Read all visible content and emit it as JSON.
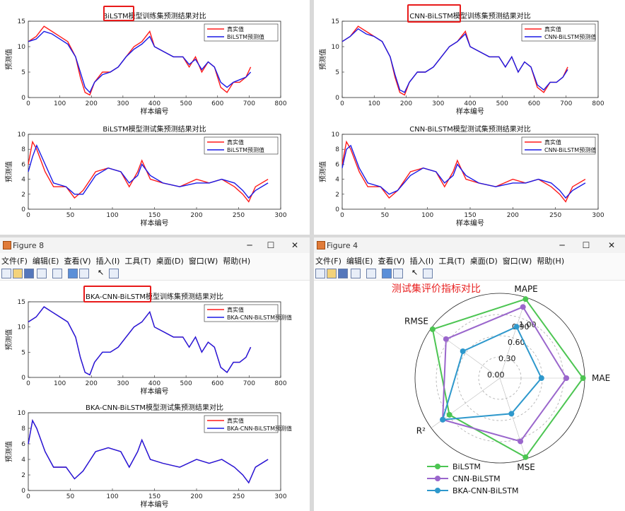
{
  "windows": {
    "bilstm": {
      "main_title": "BiLSTM模型训练集预测结果对比",
      "test_title": "BiLSTM模型测试集预测结果对比",
      "legend": [
        "真实值",
        "BiLSTM预测值"
      ]
    },
    "cnn": {
      "main_title": "CNN-BiLSTM模型训练集预测结果对比",
      "test_title": "CNN-BiLSTM模型测试集预测结果对比",
      "legend": [
        "真实值",
        "CNN-BiLSTM预测值"
      ]
    },
    "bka": {
      "window_title": "Figure 8",
      "main_title": "BKA-CNN-BiLSTM模型训练集预测结果对比",
      "test_title": "BKA-CNN-BiLSTM模型测试集预测结果对比",
      "legend": [
        "真实值",
        "BKA-CNN-BiLSTM预测值"
      ]
    },
    "radar": {
      "window_title": "Figure 4"
    }
  },
  "menu8": [
    "文件(F)",
    "编辑(E)",
    "查看(V)",
    "插入(I)",
    "工具(T)",
    "桌面(D)",
    "窗口(W)",
    "帮助(H)"
  ],
  "menu4": [
    "文件(F)",
    "编辑(E)",
    "查看(V)",
    "插入(I)",
    "工具(T)",
    "桌面(D)",
    "窗口(W)",
    "帮助(H)"
  ],
  "axis_labels": {
    "xlabel": "样本编号",
    "ylabel": "预测值"
  },
  "chart_data": [
    {
      "type": "line",
      "title": "BiLSTM模型训练集预测结果对比",
      "xlabel": "样本编号",
      "ylabel": "预测值",
      "xlim": [
        0,
        800
      ],
      "ylim": [
        0,
        15
      ],
      "xticks": [
        0,
        100,
        200,
        300,
        400,
        500,
        600,
        700,
        800
      ],
      "yticks": [
        0,
        5,
        10,
        15
      ],
      "legend_position": "top-right",
      "x": [
        0,
        25,
        50,
        75,
        100,
        125,
        150,
        165,
        180,
        195,
        210,
        235,
        260,
        285,
        310,
        335,
        360,
        385,
        400,
        430,
        460,
        490,
        510,
        530,
        550,
        570,
        590,
        610,
        630,
        650,
        670,
        690,
        705
      ],
      "series": [
        {
          "name": "真实值",
          "values": [
            11,
            12,
            14,
            13,
            12,
            11,
            8,
            4,
            1,
            0.5,
            3,
            5,
            5,
            6,
            8,
            10,
            11,
            13,
            10,
            9,
            8,
            8,
            6,
            8,
            5,
            7,
            6,
            2,
            1,
            3,
            3,
            4,
            6
          ]
        },
        {
          "name": "BiLSTM预测值",
          "values": [
            11,
            11.5,
            13,
            12.5,
            11.5,
            10.5,
            8,
            5,
            2,
            1,
            3,
            4.5,
            5,
            6,
            8,
            9.5,
            10.5,
            12,
            10,
            9,
            8,
            8,
            6.5,
            7.5,
            5.5,
            7,
            6,
            3,
            2,
            3,
            3.5,
            4,
            5
          ]
        }
      ]
    },
    {
      "type": "line",
      "title": "BiLSTM模型测试集预测结果对比",
      "xlabel": "样本编号",
      "ylabel": "预测值",
      "xlim": [
        0,
        300
      ],
      "ylim": [
        0,
        10
      ],
      "xticks": [
        0,
        50,
        100,
        150,
        200,
        250,
        300
      ],
      "yticks": [
        0,
        2,
        4,
        6,
        8,
        10
      ],
      "legend_position": "top-right",
      "x": [
        0,
        5,
        10,
        20,
        30,
        45,
        55,
        65,
        80,
        95,
        110,
        120,
        130,
        135,
        145,
        160,
        180,
        200,
        215,
        230,
        245,
        255,
        262,
        270,
        285
      ],
      "series": [
        {
          "name": "真实值",
          "values": [
            6,
            9,
            8,
            5,
            3,
            3,
            1.5,
            2.5,
            5,
            5.5,
            5,
            3,
            5,
            6.5,
            4,
            3.5,
            3,
            4,
            3.5,
            4,
            3,
            2,
            1,
            3,
            4
          ]
        },
        {
          "name": "BiLSTM预测值",
          "values": [
            5,
            7,
            8.5,
            6,
            3.5,
            3,
            2,
            2,
            4.5,
            5.5,
            5,
            3.5,
            4.5,
            6,
            4.5,
            3.5,
            3,
            3.5,
            3.5,
            4,
            3.5,
            2.5,
            1.5,
            2.5,
            3.5
          ]
        }
      ]
    },
    {
      "type": "line",
      "title": "CNN-BiLSTM模型训练集预测结果对比",
      "xlabel": "样本编号",
      "ylabel": "预测值",
      "xlim": [
        0,
        800
      ],
      "ylim": [
        0,
        15
      ],
      "xticks": [
        0,
        100,
        200,
        300,
        400,
        500,
        600,
        700,
        800
      ],
      "yticks": [
        0,
        5,
        10,
        15
      ],
      "legend_position": "top-right",
      "x": [
        0,
        25,
        50,
        75,
        100,
        125,
        150,
        165,
        180,
        195,
        210,
        235,
        260,
        285,
        310,
        335,
        360,
        385,
        400,
        430,
        460,
        490,
        510,
        530,
        550,
        570,
        590,
        610,
        630,
        650,
        670,
        690,
        705
      ],
      "series": [
        {
          "name": "真实值",
          "values": [
            11,
            12,
            14,
            13,
            12,
            11,
            8,
            4,
            1,
            0.5,
            3,
            5,
            5,
            6,
            8,
            10,
            11,
            13,
            10,
            9,
            8,
            8,
            6,
            8,
            5,
            7,
            6,
            2,
            1,
            3,
            3,
            4,
            6
          ]
        },
        {
          "name": "CNN-BiLSTM预测值",
          "values": [
            11,
            12,
            13.5,
            12.5,
            12,
            11,
            8,
            4.5,
            1.5,
            1,
            3,
            5,
            5,
            6,
            8,
            10,
            11,
            12.5,
            10,
            9,
            8,
            8,
            6,
            8,
            5,
            7,
            6,
            2.5,
            1.5,
            3,
            3,
            4,
            5.5
          ]
        }
      ]
    },
    {
      "type": "line",
      "title": "CNN-BiLSTM模型测试集预测结果对比",
      "xlabel": "样本编号",
      "ylabel": "预测值",
      "xlim": [
        0,
        300
      ],
      "ylim": [
        0,
        10
      ],
      "xticks": [
        0,
        50,
        100,
        150,
        200,
        250,
        300
      ],
      "yticks": [
        0,
        2,
        4,
        6,
        8,
        10
      ],
      "legend_position": "top-right",
      "x": [
        0,
        5,
        10,
        20,
        30,
        45,
        55,
        65,
        80,
        95,
        110,
        120,
        130,
        135,
        145,
        160,
        180,
        200,
        215,
        230,
        245,
        255,
        262,
        270,
        285
      ],
      "series": [
        {
          "name": "真实值",
          "values": [
            6,
            9,
            8,
            5,
            3,
            3,
            1.5,
            2.5,
            5,
            5.5,
            5,
            3,
            5,
            6.5,
            4,
            3.5,
            3,
            4,
            3.5,
            4,
            3,
            2,
            1,
            3,
            4
          ]
        },
        {
          "name": "CNN-BiLSTM预测值",
          "values": [
            5.5,
            8,
            8.5,
            5.5,
            3.5,
            3,
            2,
            2.5,
            4.5,
            5.5,
            5,
            3.5,
            4.5,
            6,
            4.5,
            3.5,
            3,
            3.5,
            3.5,
            4,
            3.5,
            2.5,
            1.5,
            2.5,
            3.5
          ]
        }
      ]
    },
    {
      "type": "line",
      "title": "BKA-CNN-BiLSTM模型训练集预测结果对比",
      "xlabel": "样本编号",
      "ylabel": "预测值",
      "xlim": [
        0,
        800
      ],
      "ylim": [
        0,
        15
      ],
      "xticks": [
        0,
        100,
        200,
        300,
        400,
        500,
        600,
        700,
        800
      ],
      "yticks": [
        0,
        5,
        10,
        15
      ],
      "legend_position": "top-right",
      "x": [
        0,
        25,
        50,
        75,
        100,
        125,
        150,
        165,
        180,
        195,
        210,
        235,
        260,
        285,
        310,
        335,
        360,
        385,
        400,
        430,
        460,
        490,
        510,
        530,
        550,
        570,
        590,
        610,
        630,
        650,
        670,
        690,
        705
      ],
      "series": [
        {
          "name": "真实值",
          "values": [
            11,
            12,
            14,
            13,
            12,
            11,
            8,
            4,
            1,
            0.5,
            3,
            5,
            5,
            6,
            8,
            10,
            11,
            13,
            10,
            9,
            8,
            8,
            6,
            8,
            5,
            7,
            6,
            2,
            1,
            3,
            3,
            4,
            6
          ]
        },
        {
          "name": "BKA-CNN-BiLSTM预测值",
          "values": [
            11,
            12,
            14,
            13,
            12,
            11,
            8,
            4,
            1,
            0.5,
            3,
            5,
            5,
            6,
            8,
            10,
            11,
            13,
            10,
            9,
            8,
            8,
            6,
            8,
            5,
            7,
            6,
            2,
            1,
            3,
            3,
            4,
            6
          ]
        }
      ]
    },
    {
      "type": "line",
      "title": "BKA-CNN-BiLSTM模型测试集预测结果对比",
      "xlabel": "样本编号",
      "ylabel": "预测值",
      "xlim": [
        0,
        300
      ],
      "ylim": [
        0,
        10
      ],
      "xticks": [
        0,
        50,
        100,
        150,
        200,
        250,
        300
      ],
      "yticks": [
        0,
        2,
        4,
        6,
        8,
        10
      ],
      "legend_position": "top-right",
      "x": [
        0,
        5,
        10,
        20,
        30,
        45,
        55,
        65,
        80,
        95,
        110,
        120,
        130,
        135,
        145,
        160,
        180,
        200,
        215,
        230,
        245,
        255,
        262,
        270,
        285
      ],
      "series": [
        {
          "name": "真实值",
          "values": [
            6,
            9,
            8,
            5,
            3,
            3,
            1.5,
            2.5,
            5,
            5.5,
            5,
            3,
            5,
            6.5,
            4,
            3.5,
            3,
            4,
            3.5,
            4,
            3,
            2,
            1,
            3,
            4
          ]
        },
        {
          "name": "BKA-CNN-BiLSTM预测值",
          "values": [
            6,
            9,
            8,
            5,
            3,
            3,
            1.5,
            2.5,
            5,
            5.5,
            5,
            3,
            5,
            6.5,
            4,
            3.5,
            3,
            4,
            3.5,
            4,
            3,
            2,
            1,
            3,
            4
          ]
        }
      ]
    },
    {
      "type": "radar",
      "title": "测试集评价指标对比",
      "axes": [
        "MAPE",
        "MAE",
        "MSE",
        "R²",
        "RMSE"
      ],
      "radial_ticks": [
        "0.00",
        "0.30",
        "0.60",
        "0.90",
        "1.00"
      ],
      "rlim": [
        0,
        1.0
      ],
      "legend_position": "bottom",
      "series": [
        {
          "name": "BiLSTM",
          "color": "#4cc552",
          "values": [
            1.0,
            1.0,
            1.0,
            0.75,
            1.0
          ]
        },
        {
          "name": "CNN-BiLSTM",
          "color": "#9a66cc",
          "values": [
            0.9,
            0.8,
            0.8,
            0.85,
            0.8
          ]
        },
        {
          "name": "BKA-CNN-BiLSTM",
          "color": "#2e98cc",
          "values": [
            0.65,
            0.5,
            0.45,
            0.85,
            0.55
          ]
        }
      ]
    }
  ],
  "colors": {
    "true": "#ff1a1a",
    "pred": "#1a1ae6",
    "highlight": "#e81a1a",
    "radar_title": "#e82020"
  }
}
